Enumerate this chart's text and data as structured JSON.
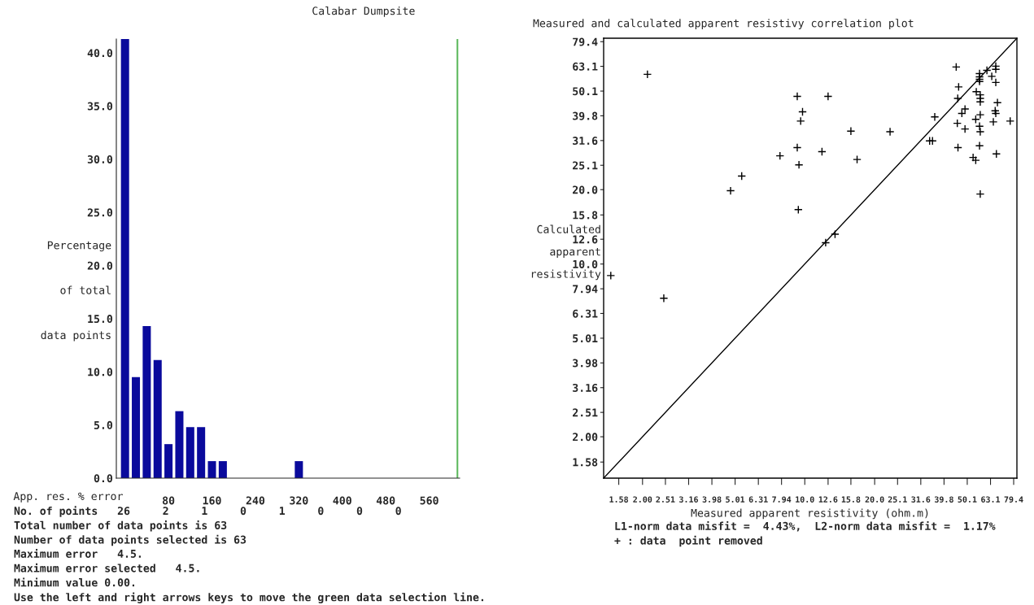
{
  "chart_data": [
    {
      "type": "histogram",
      "title": "Calabar Dumpsite",
      "xlabel": "App. res. % error",
      "ylabel": "Percentage\nof total\ndata points",
      "bins": [
        -10,
        10,
        30,
        50,
        70,
        90,
        110,
        130,
        150,
        170,
        190,
        210,
        230,
        250,
        270,
        290,
        310,
        330
      ],
      "values": [
        41.3,
        9.5,
        14.3,
        11.1,
        3.2,
        6.3,
        4.8,
        4.8,
        1.6,
        1.6,
        0,
        0,
        0,
        0,
        0,
        0,
        1.6
      ],
      "color": "#0a0a9c",
      "xlim": [
        -16,
        616
      ],
      "xticks": [
        80,
        160,
        240,
        320,
        400,
        480,
        560
      ],
      "ylim": [
        0,
        41.3
      ],
      "yticks": [
        {
          "value": 0,
          "label": "0.0"
        },
        {
          "value": 5,
          "label": "5.0"
        },
        {
          "value": 10,
          "label": "10.0"
        },
        {
          "value": 15,
          "label": "15.0"
        },
        {
          "value": 20,
          "label": "20.0"
        },
        {
          "value": 25,
          "label": "25.0"
        },
        {
          "value": 30,
          "label": "30.0"
        },
        {
          "value": 35,
          "label": "35.0"
        },
        {
          "value": 40,
          "label": "40.0"
        }
      ],
      "ref_lines": [
        {
          "axis": "x",
          "value": 612,
          "color": "#5cb85c"
        }
      ],
      "grid": false,
      "annotations": [
        "No. of points   26     2     1     0     1     0     0     0",
        "Total number of data points is 63",
        "Number of data points selected is 63",
        "Maximum error   4.5.",
        "Maximum error selected   4.5.",
        "Minimum value 0.00.",
        "Use the left and right arrows keys to move the green data selection line."
      ]
    },
    {
      "type": "scatter",
      "title": "Measured and calculated apparent resistivy correlation plot",
      "xlabel": "Measured apparent resistivity (ohm.m)",
      "ylabel": "Calculated\napparent\nresistivity",
      "log": "xy",
      "grid": false,
      "xlim": [
        1.36,
        82
      ],
      "ylim": [
        1.36,
        82
      ],
      "xticks": [
        1.58,
        {
          "value": 2.0,
          "label": "2.00"
        },
        2.51,
        3.16,
        3.98,
        5.01,
        6.31,
        7.94,
        {
          "value": 10.0,
          "label": "10.0"
        },
        12.6,
        15.8,
        {
          "value": 20.0,
          "label": "20.0"
        },
        25.1,
        31.6,
        39.8,
        50.1,
        63.1,
        79.4
      ],
      "yticks": [
        1.58,
        {
          "value": 2.0,
          "label": "2.00"
        },
        2.51,
        3.16,
        3.98,
        5.01,
        6.31,
        7.94,
        {
          "value": 10.0,
          "label": "10.0"
        },
        12.6,
        15.8,
        {
          "value": 20.0,
          "label": "20.0"
        },
        25.1,
        31.6,
        39.8,
        50.1,
        63.1,
        79.4
      ],
      "series": [
        {
          "type": "scatter",
          "marker": "cross",
          "color": "#000000",
          "x": [
            2.1,
            1.46,
            2.47,
            4.79,
            5.35,
            7.82,
            9.28,
            9.78,
            9.6,
            9.28,
            9.44,
            9.38,
            11.86,
            12.6,
            15.8,
            16.8,
            23.3,
            12.3,
            13.5,
            34.5,
            35.5,
            36.3,
            44.9,
            46.0,
            45.6,
            45.4,
            45.7,
            47.5,
            49.0,
            49.0,
            53.1,
            54.5,
            54.5,
            54.8,
            57.0,
            56.6,
            57.0,
            56.6,
            57.0,
            57.0,
            57.0,
            57.0,
            56.6,
            56.6,
            56.6,
            56.6,
            60.9,
            63.9,
            66.5,
            66.5,
            66.5,
            67.6,
            66.1,
            66.5,
            64.9,
            66.9,
            76.7
          ],
          "values": [
            58.6,
            8.98,
            7.27,
            19.8,
            22.7,
            27.4,
            47.7,
            41.3,
            37.9,
            29.6,
            25.2,
            16.6,
            28.5,
            47.7,
            34.5,
            26.5,
            34.3,
            12.2,
            13.2,
            31.5,
            31.5,
            39.4,
            62.7,
            52.1,
            46.8,
            37.1,
            29.6,
            40.7,
            42.4,
            35.2,
            27.0,
            26.3,
            38.5,
            49.8,
            19.2,
            30.1,
            34.3,
            36.1,
            40.2,
            45.3,
            46.8,
            48.4,
            59.0,
            57.2,
            55.9,
            54.8,
            60.8,
            57.5,
            63.2,
            61.4,
            54.3,
            45.0,
            41.7,
            40.7,
            37.6,
            27.9,
            37.9
          ]
        },
        {
          "type": "line",
          "color": "#000000",
          "x": [
            1.36,
            82
          ],
          "values": [
            1.36,
            82
          ]
        }
      ],
      "annotations": [
        "L1-norm data misfit =  4.43%,  L2-norm data misfit =  1.17%",
        "+ : data  point removed"
      ]
    }
  ]
}
